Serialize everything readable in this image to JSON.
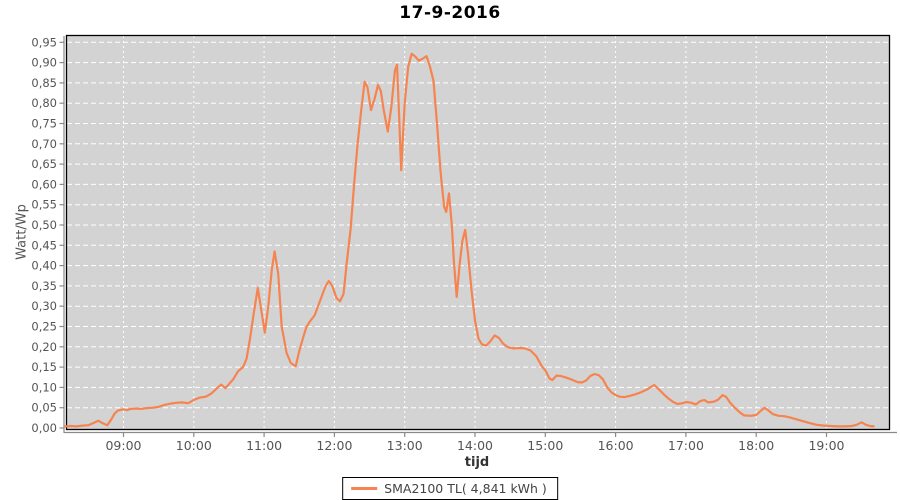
{
  "window": {
    "title": "17-9-2016"
  },
  "colors": {
    "series_orange": "#F58450",
    "plot_background": "#D3D3D3",
    "gridline": "#FFFFFF",
    "plot_border": "#000000",
    "axis_line": "#8A8A8A",
    "tick_text": "#555555",
    "title_text": "#000000",
    "legend_text": "#444444",
    "page_background": "#FFFFFF"
  },
  "legend": {
    "entries": [
      {
        "label": "SMA2100 TL( 4,841 kWh )",
        "color": "#F58450"
      }
    ]
  },
  "chart_data": {
    "type": "line",
    "title": "17-9-2016",
    "xlabel": "tijd",
    "ylabel": "Watt/Wp",
    "x_unit": "hour of day (decimal)",
    "xlim": [
      8.2,
      19.89
    ],
    "ylim": [
      0,
      0.9655
    ],
    "grid": true,
    "grid_style": "white dashed on gray plot background",
    "legend_position": "bottom-center",
    "x_ticks": [
      {
        "value": 9,
        "label": "09:00"
      },
      {
        "value": 10,
        "label": "10:00"
      },
      {
        "value": 11,
        "label": "11:00"
      },
      {
        "value": 12,
        "label": "12:00"
      },
      {
        "value": 13,
        "label": "13:00"
      },
      {
        "value": 14,
        "label": "14:00"
      },
      {
        "value": 15,
        "label": "15:00"
      },
      {
        "value": 16,
        "label": "16:00"
      },
      {
        "value": 17,
        "label": "17:00"
      },
      {
        "value": 18,
        "label": "18:00"
      },
      {
        "value": 19,
        "label": "19:00"
      }
    ],
    "y_ticks": [
      {
        "value": 0.0,
        "label": "0,00"
      },
      {
        "value": 0.05,
        "label": "0,05"
      },
      {
        "value": 0.1,
        "label": "0,10"
      },
      {
        "value": 0.15,
        "label": "0,15"
      },
      {
        "value": 0.2,
        "label": "0,20"
      },
      {
        "value": 0.25,
        "label": "0,25"
      },
      {
        "value": 0.3,
        "label": "0,30"
      },
      {
        "value": 0.35,
        "label": "0,35"
      },
      {
        "value": 0.4,
        "label": "0,40"
      },
      {
        "value": 0.45,
        "label": "0,45"
      },
      {
        "value": 0.5,
        "label": "0,50"
      },
      {
        "value": 0.55,
        "label": "0,55"
      },
      {
        "value": 0.6,
        "label": "0,60"
      },
      {
        "value": 0.65,
        "label": "0,65"
      },
      {
        "value": 0.7,
        "label": "0,70"
      },
      {
        "value": 0.75,
        "label": "0,75"
      },
      {
        "value": 0.8,
        "label": "0,80"
      },
      {
        "value": 0.85,
        "label": "0,85"
      },
      {
        "value": 0.9,
        "label": "0,90"
      },
      {
        "value": 0.95,
        "label": "0,95"
      }
    ],
    "series": [
      {
        "name": "SMA2100 TL( 4,841 kWh )",
        "color": "#F58450",
        "points": [
          [
            8.17,
            0.004
          ],
          [
            8.25,
            0.005
          ],
          [
            8.33,
            0.004
          ],
          [
            8.42,
            0.006
          ],
          [
            8.5,
            0.007
          ],
          [
            8.58,
            0.013
          ],
          [
            8.64,
            0.018
          ],
          [
            8.7,
            0.012
          ],
          [
            8.77,
            0.007
          ],
          [
            8.83,
            0.022
          ],
          [
            8.87,
            0.035
          ],
          [
            8.92,
            0.043
          ],
          [
            9.0,
            0.046
          ],
          [
            9.05,
            0.044
          ],
          [
            9.1,
            0.047
          ],
          [
            9.17,
            0.048
          ],
          [
            9.25,
            0.047
          ],
          [
            9.33,
            0.049
          ],
          [
            9.42,
            0.05
          ],
          [
            9.5,
            0.052
          ],
          [
            9.58,
            0.057
          ],
          [
            9.67,
            0.06
          ],
          [
            9.75,
            0.062
          ],
          [
            9.83,
            0.063
          ],
          [
            9.92,
            0.061
          ],
          [
            10.0,
            0.069
          ],
          [
            10.08,
            0.075
          ],
          [
            10.17,
            0.077
          ],
          [
            10.25,
            0.085
          ],
          [
            10.33,
            0.098
          ],
          [
            10.39,
            0.107
          ],
          [
            10.45,
            0.098
          ],
          [
            10.5,
            0.108
          ],
          [
            10.56,
            0.12
          ],
          [
            10.63,
            0.14
          ],
          [
            10.7,
            0.15
          ],
          [
            10.75,
            0.17
          ],
          [
            10.8,
            0.22
          ],
          [
            10.85,
            0.28
          ],
          [
            10.91,
            0.345
          ],
          [
            10.96,
            0.29
          ],
          [
            11.01,
            0.235
          ],
          [
            11.06,
            0.3
          ],
          [
            11.11,
            0.39
          ],
          [
            11.15,
            0.435
          ],
          [
            11.2,
            0.38
          ],
          [
            11.25,
            0.25
          ],
          [
            11.32,
            0.185
          ],
          [
            11.38,
            0.16
          ],
          [
            11.45,
            0.152
          ],
          [
            11.5,
            0.19
          ],
          [
            11.55,
            0.22
          ],
          [
            11.6,
            0.248
          ],
          [
            11.65,
            0.262
          ],
          [
            11.72,
            0.278
          ],
          [
            11.8,
            0.315
          ],
          [
            11.87,
            0.348
          ],
          [
            11.92,
            0.362
          ],
          [
            11.97,
            0.35
          ],
          [
            12.03,
            0.32
          ],
          [
            12.08,
            0.312
          ],
          [
            12.13,
            0.33
          ],
          [
            12.18,
            0.415
          ],
          [
            12.23,
            0.49
          ],
          [
            12.28,
            0.6
          ],
          [
            12.33,
            0.7
          ],
          [
            12.38,
            0.78
          ],
          [
            12.43,
            0.853
          ],
          [
            12.47,
            0.84
          ],
          [
            12.52,
            0.783
          ],
          [
            12.57,
            0.81
          ],
          [
            12.62,
            0.845
          ],
          [
            12.66,
            0.83
          ],
          [
            12.7,
            0.785
          ],
          [
            12.76,
            0.73
          ],
          [
            12.81,
            0.79
          ],
          [
            12.86,
            0.88
          ],
          [
            12.89,
            0.895
          ],
          [
            12.92,
            0.77
          ],
          [
            12.95,
            0.635
          ],
          [
            13.0,
            0.8
          ],
          [
            13.05,
            0.89
          ],
          [
            13.1,
            0.922
          ],
          [
            13.15,
            0.915
          ],
          [
            13.2,
            0.905
          ],
          [
            13.26,
            0.91
          ],
          [
            13.31,
            0.916
          ],
          [
            13.36,
            0.89
          ],
          [
            13.41,
            0.855
          ],
          [
            13.46,
            0.75
          ],
          [
            13.51,
            0.63
          ],
          [
            13.56,
            0.545
          ],
          [
            13.59,
            0.532
          ],
          [
            13.63,
            0.578
          ],
          [
            13.67,
            0.5
          ],
          [
            13.7,
            0.41
          ],
          [
            13.74,
            0.323
          ],
          [
            13.78,
            0.4
          ],
          [
            13.82,
            0.46
          ],
          [
            13.86,
            0.488
          ],
          [
            13.9,
            0.43
          ],
          [
            13.95,
            0.34
          ],
          [
            14.0,
            0.265
          ],
          [
            14.05,
            0.22
          ],
          [
            14.1,
            0.206
          ],
          [
            14.16,
            0.203
          ],
          [
            14.22,
            0.214
          ],
          [
            14.28,
            0.228
          ],
          [
            14.34,
            0.222
          ],
          [
            14.4,
            0.208
          ],
          [
            14.47,
            0.199
          ],
          [
            14.55,
            0.196
          ],
          [
            14.63,
            0.197
          ],
          [
            14.71,
            0.196
          ],
          [
            14.79,
            0.191
          ],
          [
            14.87,
            0.177
          ],
          [
            14.95,
            0.152
          ],
          [
            15.0,
            0.142
          ],
          [
            15.06,
            0.122
          ],
          [
            15.1,
            0.118
          ],
          [
            15.16,
            0.129
          ],
          [
            15.22,
            0.128
          ],
          [
            15.3,
            0.124
          ],
          [
            15.38,
            0.119
          ],
          [
            15.46,
            0.113
          ],
          [
            15.52,
            0.112
          ],
          [
            15.58,
            0.117
          ],
          [
            15.64,
            0.128
          ],
          [
            15.7,
            0.133
          ],
          [
            15.76,
            0.13
          ],
          [
            15.82,
            0.12
          ],
          [
            15.88,
            0.1
          ],
          [
            15.94,
            0.088
          ],
          [
            16.0,
            0.081
          ],
          [
            16.06,
            0.077
          ],
          [
            16.13,
            0.076
          ],
          [
            16.2,
            0.079
          ],
          [
            16.28,
            0.083
          ],
          [
            16.36,
            0.088
          ],
          [
            16.44,
            0.094
          ],
          [
            16.51,
            0.102
          ],
          [
            16.55,
            0.106
          ],
          [
            16.61,
            0.096
          ],
          [
            16.68,
            0.084
          ],
          [
            16.75,
            0.073
          ],
          [
            16.82,
            0.064
          ],
          [
            16.88,
            0.059
          ],
          [
            16.95,
            0.061
          ],
          [
            17.01,
            0.064
          ],
          [
            17.08,
            0.062
          ],
          [
            17.14,
            0.058
          ],
          [
            17.2,
            0.066
          ],
          [
            17.26,
            0.069
          ],
          [
            17.32,
            0.063
          ],
          [
            17.4,
            0.065
          ],
          [
            17.46,
            0.07
          ],
          [
            17.52,
            0.081
          ],
          [
            17.57,
            0.077
          ],
          [
            17.63,
            0.062
          ],
          [
            17.7,
            0.049
          ],
          [
            17.77,
            0.038
          ],
          [
            17.83,
            0.031
          ],
          [
            17.92,
            0.03
          ],
          [
            18.0,
            0.032
          ],
          [
            18.07,
            0.043
          ],
          [
            18.12,
            0.05
          ],
          [
            18.18,
            0.042
          ],
          [
            18.24,
            0.034
          ],
          [
            18.32,
            0.03
          ],
          [
            18.4,
            0.029
          ],
          [
            18.48,
            0.026
          ],
          [
            18.56,
            0.022
          ],
          [
            18.66,
            0.017
          ],
          [
            18.76,
            0.012
          ],
          [
            18.86,
            0.008
          ],
          [
            18.96,
            0.006
          ],
          [
            19.06,
            0.005
          ],
          [
            19.16,
            0.004
          ],
          [
            19.26,
            0.004
          ],
          [
            19.36,
            0.005
          ],
          [
            19.43,
            0.008
          ],
          [
            19.5,
            0.014
          ],
          [
            19.56,
            0.008
          ],
          [
            19.62,
            0.005
          ],
          [
            19.67,
            0.004
          ]
        ]
      }
    ]
  }
}
